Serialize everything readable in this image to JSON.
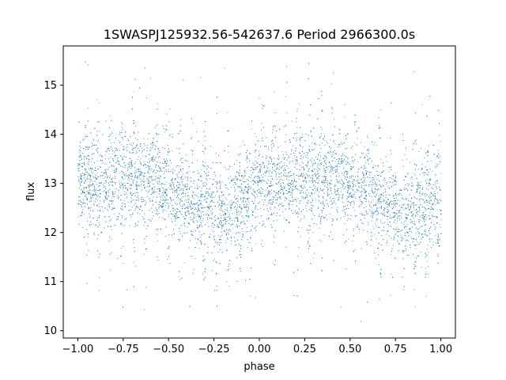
{
  "chart_data": {
    "type": "scatter",
    "title": "1SWASPJ125932.56-542637.6 Period 2966300.0s",
    "xlabel": "phase",
    "ylabel": "flux",
    "xlim": [
      -1.08,
      1.08
    ],
    "ylim": [
      9.85,
      15.8
    ],
    "xticks": [
      -1.0,
      -0.75,
      -0.5,
      -0.25,
      0.0,
      0.25,
      0.5,
      0.75,
      1.0
    ],
    "xtick_labels": [
      "−1.00",
      "−0.75",
      "−0.50",
      "−0.25",
      "0.00",
      "0.25",
      "0.50",
      "0.75",
      "1.00"
    ],
    "yticks": [
      10,
      11,
      12,
      13,
      14,
      15
    ],
    "ytick_labels": [
      "10",
      "11",
      "12",
      "13",
      "14",
      "15"
    ],
    "grid": false,
    "marker_color": "#1f77b4",
    "series": [
      {
        "description": "folded light curve; dense scatter of points with flux mostly 11.8-14.0, overall downward trend per cycle from ~13.1 near phase -0.9 to ~12.3 near phase -0.2, repeating every 1.0 in phase",
        "phase_range": [
          -1.0,
          1.0
        ],
        "typical_flux_by_phase": [
          [
            -1.0,
            13.0
          ],
          [
            -0.9,
            13.0
          ],
          [
            -0.8,
            13.1
          ],
          [
            -0.7,
            13.1
          ],
          [
            -0.6,
            13.2
          ],
          [
            -0.5,
            12.9
          ],
          [
            -0.4,
            12.7
          ],
          [
            -0.3,
            12.6
          ],
          [
            -0.2,
            12.35
          ],
          [
            -0.1,
            12.6
          ],
          [
            0.0,
            13.0
          ],
          [
            0.1,
            13.0
          ],
          [
            0.2,
            13.1
          ],
          [
            0.3,
            13.1
          ],
          [
            0.4,
            13.2
          ],
          [
            0.5,
            12.9
          ],
          [
            0.6,
            12.7
          ],
          [
            0.7,
            12.6
          ],
          [
            0.8,
            12.35
          ],
          [
            0.9,
            12.6
          ],
          [
            1.0,
            12.6
          ]
        ],
        "core_spread": 0.45,
        "outlier_flux_range": [
          10.1,
          15.5
        ]
      }
    ]
  }
}
